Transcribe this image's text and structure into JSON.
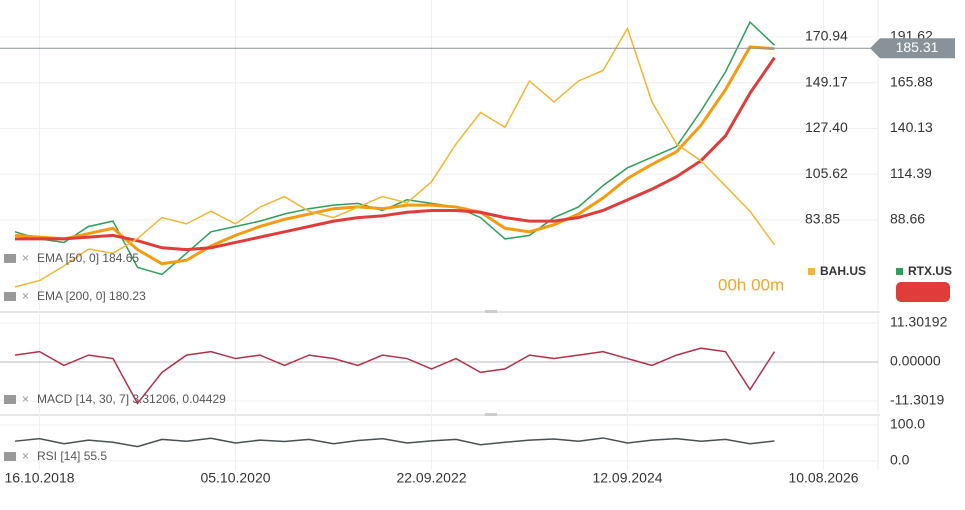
{
  "chart_data": [
    {
      "type": "line",
      "categories": [
        null,
        "16.10.2018",
        null,
        null,
        null,
        null,
        null,
        null,
        null,
        "05.10.2020",
        null,
        null,
        null,
        null,
        null,
        null,
        null,
        "22.09.2022",
        null,
        null,
        null,
        null,
        null,
        null,
        null,
        "12.09.2024",
        null,
        null,
        null,
        null,
        null,
        null,
        null,
        "10.08.2026"
      ],
      "ylim": [
        41,
        188.55
      ],
      "yticks": [
        83.85,
        105.62,
        {
          "value": 127.4,
          "label": "127.40"
        },
        149.17,
        170.94
      ],
      "y2lim": [
        38,
        212.44
      ],
      "y2ticks": [
        88.66,
        114.39,
        140.13,
        165.88,
        191.62
      ],
      "grid": true,
      "last_price": 185.31,
      "countdown": "00h 00m",
      "series": [
        {
          "name": "RTX.US",
          "color": "#2e9e5b",
          "axis": "y2",
          "legend": "bottom-right",
          "values": [
            82,
            78,
            76,
            85,
            88,
            62,
            58,
            70,
            82,
            85,
            88,
            92,
            95,
            97,
            98,
            94,
            100,
            98,
            96,
            90,
            78,
            80,
            90,
            96,
            108,
            118,
            124,
            130,
            150,
            172,
            200,
            187,
            null,
            null
          ]
        },
        {
          "name": "EMA [50, 0] 184.65",
          "color": "#f39c12",
          "axis": "y2",
          "legend": "bottom-left",
          "values": [
            80,
            79,
            78,
            81,
            84,
            72,
            64,
            66,
            74,
            80,
            85,
            89,
            92,
            95,
            96,
            95,
            97,
            97,
            96,
            93,
            84,
            82,
            86,
            92,
            101,
            112,
            120,
            127,
            142,
            162,
            186,
            185,
            null,
            null
          ]
        },
        {
          "name": "EMA [200, 0] 180.23",
          "color": "#e03c3c",
          "axis": "y2",
          "legend": "bottom-left",
          "values": [
            78,
            78,
            78,
            79,
            80,
            77,
            73,
            72,
            73,
            76,
            79,
            82,
            85,
            88,
            90,
            91,
            93,
            94,
            94,
            93,
            90,
            88,
            88,
            90,
            94,
            100,
            106,
            113,
            122,
            136,
            160,
            180,
            null,
            null
          ]
        },
        {
          "name": "BAH.US",
          "color": "#f2b632",
          "legend": "bottom-right",
          "values": [
            52,
            55,
            62,
            70,
            68,
            75,
            85,
            82,
            88,
            82,
            90,
            95,
            88,
            85,
            90,
            95,
            92,
            102,
            120,
            135,
            128,
            150,
            140,
            150,
            155,
            175,
            140,
            120,
            112,
            100,
            88,
            72,
            null,
            null
          ]
        }
      ]
    },
    {
      "type": "line",
      "ylim": [
        -15.36,
        13.62
      ],
      "yticks": [
        11.30192,
        {
          "value": 0,
          "label": "0.00000"
        },
        -11.3019
      ],
      "series": [
        {
          "name": "MACD [14, 30, 7] 3.31206, 0.04429",
          "color": "#b0304a",
          "values": [
            2,
            3,
            -1,
            2,
            1,
            -12,
            -3,
            2,
            3,
            1,
            2,
            -1,
            2,
            1,
            -1,
            2,
            1,
            -2,
            1,
            -3,
            -2,
            2,
            1,
            2,
            3,
            1,
            -1,
            2,
            4,
            3,
            -8,
            3,
            null,
            null
          ]
        }
      ]
    },
    {
      "type": "line",
      "ylim": [
        -25,
        119.4
      ],
      "yticks": [
        {
          "value": 100,
          "label": "100.0"
        },
        {
          "value": 0,
          "label": "0.0"
        }
      ],
      "series": [
        {
          "name": "RSI [14] 55.5",
          "color": "#4a4f52",
          "values": [
            55,
            62,
            48,
            58,
            52,
            40,
            60,
            55,
            63,
            50,
            58,
            54,
            60,
            48,
            57,
            62,
            50,
            56,
            60,
            45,
            52,
            58,
            61,
            55,
            64,
            50,
            58,
            62,
            55,
            60,
            48,
            55.5,
            null,
            null
          ]
        }
      ]
    }
  ]
}
